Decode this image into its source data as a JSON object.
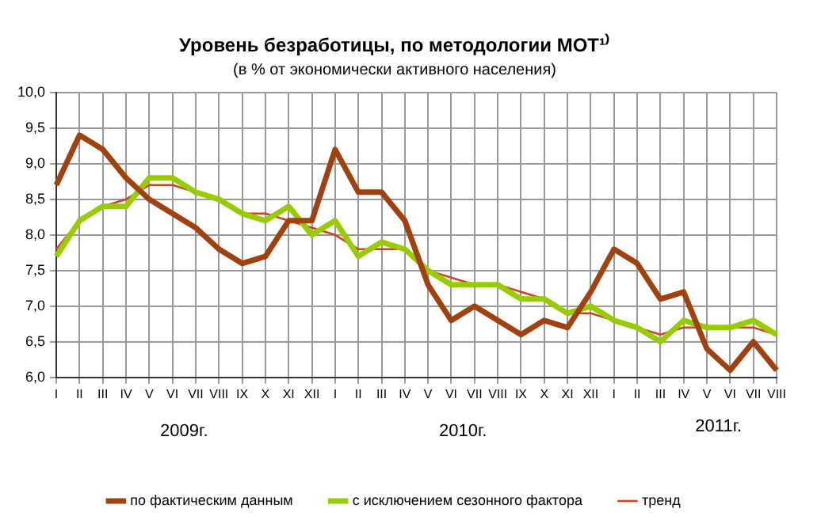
{
  "chart_data": {
    "type": "line",
    "title": "Уровень безработицы, по методологии МОТ¹⁾",
    "subtitle": "(в % от экономически активного населения)",
    "categories": [
      "I",
      "II",
      "III",
      "IV",
      "V",
      "VI",
      "VII",
      "VIII",
      "IX",
      "X",
      "XI",
      "XII",
      "I",
      "II",
      "III",
      "IV",
      "V",
      "VI",
      "VII",
      "VIII",
      "IX",
      "X",
      "XI",
      "XII",
      "I",
      "II",
      "III",
      "IV",
      "V",
      "VI",
      "VII",
      "VIII"
    ],
    "series": [
      {
        "name": "по фактическим данным",
        "color": "#a0420f",
        "values": [
          8.7,
          9.4,
          9.2,
          8.8,
          8.5,
          8.3,
          8.1,
          7.8,
          7.6,
          7.7,
          8.2,
          8.2,
          9.2,
          8.6,
          8.6,
          8.2,
          7.3,
          6.8,
          7.0,
          6.8,
          6.6,
          6.8,
          6.7,
          7.2,
          7.8,
          7.6,
          7.1,
          7.2,
          6.4,
          6.1,
          6.5,
          6.1
        ]
      },
      {
        "name": "с исключением сезонного фактора",
        "color": "#99cc00",
        "values": [
          7.7,
          8.2,
          8.4,
          8.4,
          8.8,
          8.8,
          8.6,
          8.5,
          8.3,
          8.2,
          8.4,
          8.0,
          8.2,
          7.7,
          7.9,
          7.8,
          7.5,
          7.3,
          7.3,
          7.3,
          7.1,
          7.1,
          6.9,
          7.0,
          6.8,
          6.7,
          6.5,
          6.8,
          6.7,
          6.7,
          6.8,
          6.6
        ]
      },
      {
        "name": "тренд",
        "color": "#cc4422",
        "values": [
          7.8,
          8.2,
          8.4,
          8.5,
          8.7,
          8.7,
          8.6,
          8.5,
          8.3,
          8.3,
          8.2,
          8.1,
          8.0,
          7.8,
          7.8,
          7.8,
          7.5,
          7.4,
          7.3,
          7.3,
          7.2,
          7.1,
          6.9,
          6.9,
          6.8,
          6.7,
          6.6,
          6.7,
          6.7,
          6.7,
          6.7,
          6.6
        ]
      }
    ],
    "ylim": [
      6,
      10
    ],
    "yticks": [
      {
        "value": 6,
        "label": "6,0"
      },
      {
        "value": 6.5,
        "label": "6,5"
      },
      {
        "value": 7,
        "label": "7,0"
      },
      {
        "value": 7.5,
        "label": "7,5"
      },
      {
        "value": 8,
        "label": "8,0"
      },
      {
        "value": 8.5,
        "label": "8,5"
      },
      {
        "value": 9,
        "label": "9,0"
      },
      {
        "value": 9.5,
        "label": "9,5"
      },
      {
        "value": 10,
        "label": "10,0"
      }
    ],
    "annotations": [
      "2009г.",
      "2010г.",
      "2011г."
    ],
    "grid": true,
    "legend": "bottom",
    "marker": "none",
    "line_style": "solid"
  }
}
